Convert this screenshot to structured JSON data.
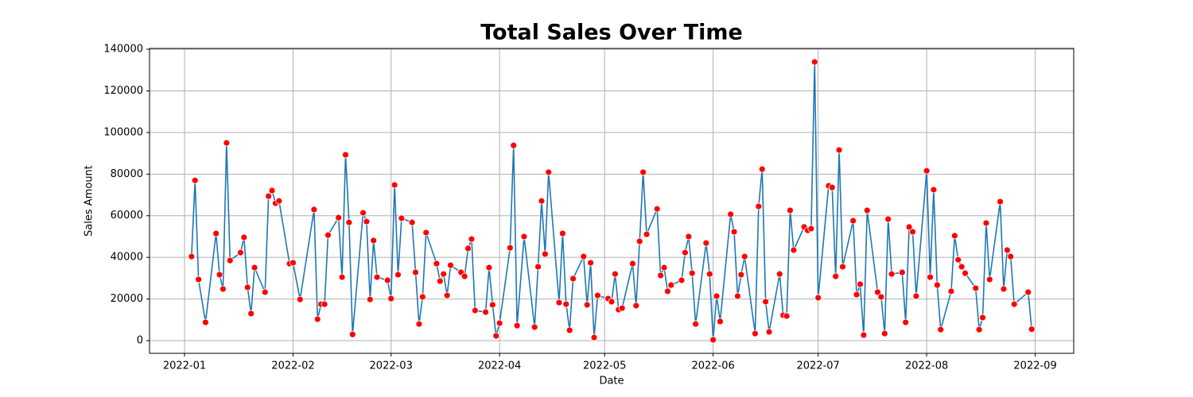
{
  "chart_data": {
    "type": "line",
    "title": "Total Sales Over Time",
    "x_label": "Date",
    "y_label": "Sales Amount",
    "x": [
      "2022-01-03",
      "2022-01-04",
      "2022-01-05",
      "2022-01-07",
      "2022-01-10",
      "2022-01-11",
      "2022-01-12",
      "2022-01-13",
      "2022-01-14",
      "2022-01-17",
      "2022-01-18",
      "2022-01-19",
      "2022-01-20",
      "2022-01-21",
      "2022-01-24",
      "2022-01-25",
      "2022-01-26",
      "2022-01-27",
      "2022-01-28",
      "2022-01-31",
      "2022-02-01",
      "2022-02-03",
      "2022-02-07",
      "2022-02-08",
      "2022-02-09",
      "2022-02-10",
      "2022-02-11",
      "2022-02-14",
      "2022-02-15",
      "2022-02-16",
      "2022-02-17",
      "2022-02-18",
      "2022-02-21",
      "2022-02-22",
      "2022-02-23",
      "2022-02-24",
      "2022-02-25",
      "2022-02-28",
      "2022-03-01",
      "2022-03-02",
      "2022-03-03",
      "2022-03-04",
      "2022-03-07",
      "2022-03-08",
      "2022-03-09",
      "2022-03-10",
      "2022-03-11",
      "2022-03-14",
      "2022-03-15",
      "2022-03-16",
      "2022-03-17",
      "2022-03-18",
      "2022-03-21",
      "2022-03-22",
      "2022-03-23",
      "2022-03-24",
      "2022-03-25",
      "2022-03-28",
      "2022-03-29",
      "2022-03-30",
      "2022-03-31",
      "2022-04-01",
      "2022-04-04",
      "2022-04-05",
      "2022-04-06",
      "2022-04-08",
      "2022-04-11",
      "2022-04-12",
      "2022-04-13",
      "2022-04-14",
      "2022-04-15",
      "2022-04-18",
      "2022-04-19",
      "2022-04-20",
      "2022-04-21",
      "2022-04-22",
      "2022-04-25",
      "2022-04-26",
      "2022-04-27",
      "2022-04-28",
      "2022-04-29",
      "2022-05-02",
      "2022-05-03",
      "2022-05-04",
      "2022-05-05",
      "2022-05-06",
      "2022-05-09",
      "2022-05-10",
      "2022-05-11",
      "2022-05-12",
      "2022-05-13",
      "2022-05-16",
      "2022-05-17",
      "2022-05-18",
      "2022-05-19",
      "2022-05-20",
      "2022-05-23",
      "2022-05-24",
      "2022-05-25",
      "2022-05-26",
      "2022-05-27",
      "2022-05-30",
      "2022-05-31",
      "2022-06-01",
      "2022-06-02",
      "2022-06-03",
      "2022-06-06",
      "2022-06-07",
      "2022-06-08",
      "2022-06-09",
      "2022-06-10",
      "2022-06-13",
      "2022-06-14",
      "2022-06-15",
      "2022-06-16",
      "2022-06-17",
      "2022-06-20",
      "2022-06-21",
      "2022-06-22",
      "2022-06-23",
      "2022-06-24",
      "2022-06-27",
      "2022-06-28",
      "2022-06-29",
      "2022-06-30",
      "2022-07-01",
      "2022-07-04",
      "2022-07-05",
      "2022-07-06",
      "2022-07-07",
      "2022-07-08",
      "2022-07-11",
      "2022-07-12",
      "2022-07-13",
      "2022-07-14",
      "2022-07-15",
      "2022-07-18",
      "2022-07-19",
      "2022-07-20",
      "2022-07-21",
      "2022-07-22",
      "2022-07-25",
      "2022-07-26",
      "2022-07-27",
      "2022-07-28",
      "2022-07-29",
      "2022-08-01",
      "2022-08-02",
      "2022-08-03",
      "2022-08-04",
      "2022-08-05",
      "2022-08-08",
      "2022-08-09",
      "2022-08-10",
      "2022-08-11",
      "2022-08-12",
      "2022-08-15",
      "2022-08-16",
      "2022-08-17",
      "2022-08-18",
      "2022-08-19",
      "2022-08-22",
      "2022-08-23",
      "2022-08-24",
      "2022-08-25",
      "2022-08-26",
      "2022-08-30",
      "2022-08-31"
    ],
    "values": [
      40400,
      77000,
      29400,
      8800,
      51500,
      31700,
      24800,
      95000,
      38500,
      42300,
      49600,
      25600,
      13000,
      35100,
      23300,
      69400,
      72100,
      66000,
      67100,
      37000,
      37400,
      19800,
      63000,
      10300,
      17500,
      17500,
      50700,
      59100,
      30500,
      89300,
      56800,
      3000,
      61400,
      57200,
      19800,
      48100,
      30500,
      29000,
      20200,
      74800,
      31700,
      58800,
      56800,
      32800,
      8000,
      21000,
      51900,
      37000,
      28600,
      32000,
      21700,
      36200,
      32800,
      30900,
      44300,
      48800,
      14500,
      13700,
      35100,
      17200,
      2300,
      8400,
      44600,
      93800,
      7200,
      50000,
      6500,
      35500,
      67100,
      41600,
      80900,
      18300,
      51500,
      17500,
      5000,
      29800,
      40400,
      17200,
      37400,
      1500,
      21700,
      20200,
      18700,
      32000,
      14900,
      15600,
      37000,
      16800,
      47700,
      80900,
      51100,
      63300,
      31300,
      35100,
      23700,
      26700,
      29000,
      42300,
      50000,
      32400,
      8000,
      46900,
      32000,
      400,
      21400,
      9200,
      60700,
      52300,
      21400,
      31700,
      40400,
      3400,
      64500,
      82400,
      18700,
      4200,
      32000,
      12200,
      11800,
      62600,
      43500,
      54600,
      53000,
      53800,
      133900,
      20600,
      74400,
      73600,
      30900,
      91600,
      35500,
      57600,
      22100,
      27100,
      2700,
      62600,
      23300,
      21000,
      3400,
      58400,
      32000,
      32800,
      8800,
      54600,
      52300,
      21400,
      81600,
      30500,
      72500,
      26700,
      5300,
      23700,
      50400,
      38900,
      35500,
      32400,
      25200,
      5300,
      11100,
      56500,
      29400,
      66800,
      24800,
      43500,
      40400,
      17500,
      23300,
      5500
    ],
    "color": "#1f77b4",
    "marker_color": "#ff0000",
    "xlim": [
      "2021-12-22",
      "2022-09-12"
    ],
    "xticks": [
      "2022-01",
      "2022-02",
      "2022-03",
      "2022-04",
      "2022-05",
      "2022-06",
      "2022-07",
      "2022-08",
      "2022-09"
    ],
    "ylim": [
      -6100,
      140400
    ],
    "yticks": [
      0,
      20000,
      40000,
      60000,
      80000,
      100000,
      120000,
      140000
    ],
    "grid": true
  }
}
